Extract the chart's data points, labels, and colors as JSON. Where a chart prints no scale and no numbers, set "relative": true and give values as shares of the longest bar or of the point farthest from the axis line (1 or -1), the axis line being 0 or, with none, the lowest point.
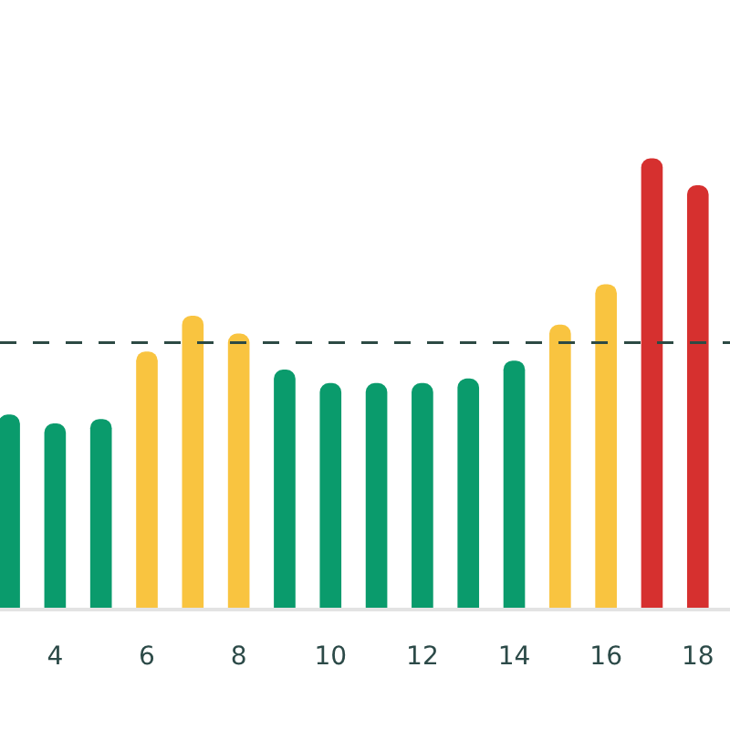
{
  "chart_data": {
    "type": "bar",
    "relative": true,
    "categories": [
      null,
      "4",
      null,
      "6",
      null,
      "8",
      null,
      "10",
      null,
      "12",
      null,
      "14",
      null,
      "16",
      null,
      "18"
    ],
    "values": [
      0.43,
      0.41,
      0.42,
      0.57,
      0.65,
      0.61,
      0.53,
      0.5,
      0.5,
      0.5,
      0.51,
      0.55,
      0.63,
      0.72,
      1,
      0.94
    ],
    "colors": [
      "#0a9b6c",
      "#0a9b6c",
      "#0a9b6c",
      "#f9c440",
      "#f9c440",
      "#f9c440",
      "#0a9b6c",
      "#0a9b6c",
      "#0a9b6c",
      "#0a9b6c",
      "#0a9b6c",
      "#0a9b6c",
      "#f9c440",
      "#f9c440",
      "#d6302f",
      "#d6302f"
    ],
    "ref_lines": [
      {
        "axis": "y",
        "value": 0.59,
        "label": null,
        "color": "#2d4a44",
        "line_style": "dashed"
      }
    ]
  }
}
